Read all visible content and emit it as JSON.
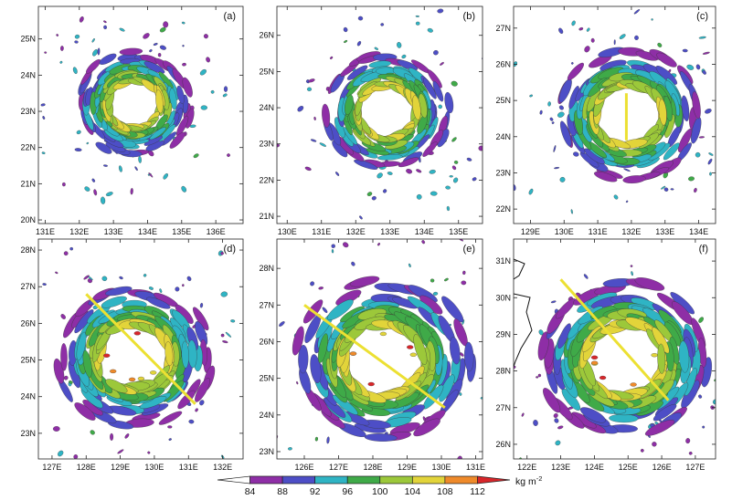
{
  "chart_data": {
    "type": "heatmap",
    "colorbar": {
      "ticks": [
        "84",
        "88",
        "92",
        "96",
        "100",
        "104",
        "108",
        "112"
      ],
      "unit_text": "kg m",
      "unit_sup": "-2",
      "colors": [
        "#ffffff",
        "#8e2ea6",
        "#4d4ec6",
        "#2fb4c4",
        "#3faa48",
        "#9cc83a",
        "#e2d43a",
        "#ef8a2a",
        "#d8262a"
      ]
    },
    "panels": [
      {
        "label": "(a)",
        "x_ticks": [
          "131E",
          "132E",
          "133E",
          "134E",
          "135E",
          "136E"
        ],
        "y_ticks": [
          "20N",
          "21N",
          "22N",
          "23N",
          "24N",
          "25N"
        ],
        "x_range": [
          130.8,
          136.8
        ],
        "y_range": [
          19.9,
          25.9
        ],
        "center": [
          133.6,
          23.2
        ],
        "radius_deg": 1.2,
        "cross_section": null
      },
      {
        "label": "(b)",
        "x_ticks": [
          "130E",
          "131E",
          "132E",
          "133E",
          "134E",
          "135E"
        ],
        "y_ticks": [
          "21N",
          "22N",
          "23N",
          "24N",
          "25N",
          "26N"
        ],
        "x_range": [
          129.7,
          135.7
        ],
        "y_range": [
          20.8,
          26.8
        ],
        "center": [
          132.9,
          23.9
        ],
        "radius_deg": 1.3,
        "cross_section": null
      },
      {
        "label": "(c)",
        "x_ticks": [
          "129E",
          "130E",
          "131E",
          "132E",
          "133E",
          "134E"
        ],
        "y_ticks": [
          "22N",
          "23N",
          "24N",
          "25N",
          "26N",
          "27N"
        ],
        "x_range": [
          128.5,
          134.5
        ],
        "y_range": [
          21.6,
          27.6
        ],
        "center": [
          131.9,
          24.6
        ],
        "radius_deg": 1.5,
        "cross_section": [
          [
            131.85,
            25.2
          ],
          [
            131.85,
            23.9
          ]
        ]
      },
      {
        "label": "(d)",
        "x_ticks": [
          "127E",
          "128E",
          "129E",
          "130E",
          "131E",
          "132E"
        ],
        "y_ticks": [
          "23N",
          "24N",
          "25N",
          "26N",
          "27N",
          "28N"
        ],
        "x_range": [
          126.6,
          132.6
        ],
        "y_range": [
          22.3,
          28.3
        ],
        "center": [
          129.4,
          25.1
        ],
        "radius_deg": 1.6,
        "cross_section": [
          [
            128.0,
            26.8
          ],
          [
            131.2,
            23.8
          ]
        ]
      },
      {
        "label": "(e)",
        "x_ticks": [
          "126E",
          "127E",
          "128E",
          "129E",
          "130E",
          "131E"
        ],
        "y_ticks": [
          "23N",
          "24N",
          "25N",
          "26N",
          "27N",
          "28N"
        ],
        "x_range": [
          125.2,
          131.2
        ],
        "y_range": [
          22.8,
          28.8
        ],
        "center": [
          128.3,
          25.5
        ],
        "radius_deg": 1.8,
        "cross_section": [
          [
            126.0,
            27.0
          ],
          [
            130.1,
            24.2
          ]
        ]
      },
      {
        "label": "(f)",
        "x_ticks": [
          "122E",
          "123E",
          "124E",
          "125E",
          "126E",
          "127E"
        ],
        "y_ticks": [
          "26N",
          "27N",
          "28N",
          "29N",
          "30N",
          "31N"
        ],
        "x_range": [
          121.6,
          127.6
        ],
        "y_range": [
          25.6,
          31.6
        ],
        "center": [
          124.9,
          28.3
        ],
        "radius_deg": 1.8,
        "cross_section": [
          [
            123.0,
            30.5
          ],
          [
            126.2,
            27.2
          ]
        ]
      }
    ]
  }
}
